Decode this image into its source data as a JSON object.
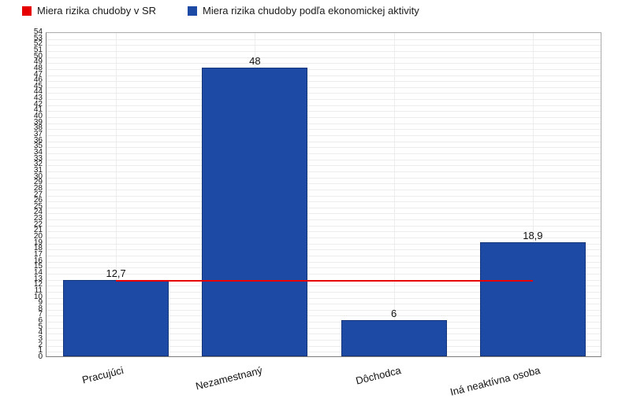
{
  "legend": {
    "items": [
      {
        "label": "Miera rizika chudoby v SR",
        "color": "#e60000"
      },
      {
        "label": "Miera rizika chudoby podľa ekonomickej aktivity",
        "color": "#1d4aa4"
      }
    ]
  },
  "chart_data": {
    "type": "bar",
    "title": "",
    "xlabel": "",
    "ylabel": "",
    "categories": [
      "Pracujúci",
      "Nezamestnaný",
      "Dôchodca",
      "Iná neaktívna osoba"
    ],
    "series": [
      {
        "name": "Miera rizika chudoby podľa ekonomickej aktivity",
        "type": "bar",
        "color": "#1d4aa4",
        "values": [
          12.7,
          48,
          6,
          18.9
        ],
        "data_labels": [
          "12,7",
          "48",
          "6",
          "18,9"
        ]
      },
      {
        "name": "Miera rizika chudoby v SR",
        "type": "line",
        "color": "#e60000",
        "values": [
          12.8,
          12.8,
          12.8,
          12.8
        ]
      }
    ],
    "ylim": [
      0,
      54
    ],
    "ytick_step": 1,
    "grid": true,
    "legend_position": "top-left"
  }
}
